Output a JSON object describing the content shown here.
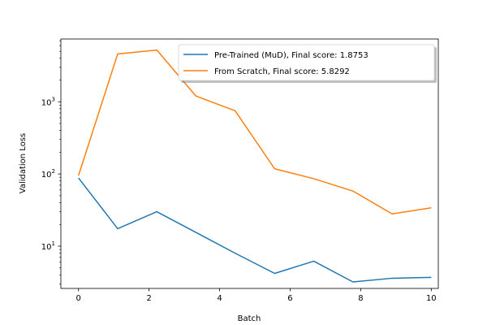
{
  "chart_data": {
    "type": "line",
    "xlabel": "Batch",
    "ylabel": "Validation Loss",
    "yscale": "log",
    "xlim": [
      -0.5,
      10.2
    ],
    "ylim": [
      2.6,
      7400
    ],
    "x_ticks": [
      0,
      2,
      4,
      6,
      8,
      10
    ],
    "y_ticks": [
      {
        "base": "10",
        "exp": "1",
        "value": 10
      },
      {
        "base": "10",
        "exp": "2",
        "value": 100
      },
      {
        "base": "10",
        "exp": "3",
        "value": 1000
      }
    ],
    "legend_position": "top-right",
    "series": [
      {
        "name": "Pre-Trained (MuD), Final score: 1.8753",
        "color": "#1f77b4",
        "x": [
          0,
          1.11,
          2.22,
          3.33,
          4.44,
          5.56,
          6.67,
          7.78,
          8.89,
          10
        ],
        "y": [
          88,
          17.5,
          30,
          15.5,
          8,
          4.2,
          6.2,
          3.2,
          3.6,
          3.7
        ]
      },
      {
        "name": "From Scratch, Final score: 5.8292",
        "color": "#ff7f0e",
        "x": [
          0,
          1.11,
          2.22,
          3.33,
          4.44,
          5.56,
          6.67,
          7.78,
          8.89,
          10
        ],
        "y": [
          95,
          4600,
          5200,
          1200,
          750,
          118,
          86,
          58,
          28,
          34
        ]
      }
    ]
  }
}
